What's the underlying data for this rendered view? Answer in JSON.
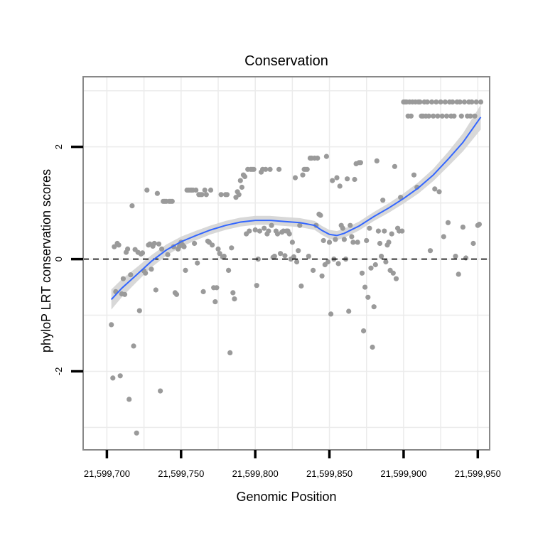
{
  "chart_data": {
    "type": "scatter",
    "title": "Conservation",
    "xlabel": "Genomic Position",
    "ylabel": "phyloP LRT conservation scores",
    "xlim": [
      21599684,
      21599958
    ],
    "ylim": [
      -3.4,
      3.25
    ],
    "x_ticks": [
      {
        "value": 21599700,
        "label": "21,599,700"
      },
      {
        "value": 21599750,
        "label": "21,599,750"
      },
      {
        "value": 21599800,
        "label": "21,599,800"
      },
      {
        "value": 21599850,
        "label": "21,599,850"
      },
      {
        "value": 21599900,
        "label": "21,599,900"
      },
      {
        "value": 21599950,
        "label": "21,599,950"
      }
    ],
    "y_ticks": [
      {
        "value": -2,
        "label": "-2"
      },
      {
        "value": 0,
        "label": "0"
      },
      {
        "value": 2,
        "label": "2"
      }
    ],
    "grid": true,
    "reference_line": {
      "y": 0,
      "style": "dashed"
    },
    "colors": {
      "points": "#9a9a9a",
      "smooth": "#3366ff",
      "ribbon": "#d4d4d4",
      "panel_border": "#888888",
      "grid": "#ebebeb"
    },
    "points": [
      [
        21599703,
        -1.17
      ],
      [
        21599704,
        -2.12
      ],
      [
        21599705,
        0.22
      ],
      [
        21599706,
        -0.58
      ],
      [
        21599707,
        0.28
      ],
      [
        21599708,
        0.25
      ],
      [
        21599709,
        -2.08
      ],
      [
        21599710,
        -0.62
      ],
      [
        21599711,
        -0.35
      ],
      [
        21599712,
        -0.63
      ],
      [
        21599713,
        0.12
      ],
      [
        21599714,
        0.18
      ],
      [
        21599715,
        -2.5
      ],
      [
        21599716,
        -0.28
      ],
      [
        21599717,
        0.95
      ],
      [
        21599718,
        -1.55
      ],
      [
        21599719,
        0.17
      ],
      [
        21599720,
        -3.1
      ],
      [
        21599721,
        0.12
      ],
      [
        21599722,
        -0.92
      ],
      [
        21599723,
        0.09
      ],
      [
        21599724,
        0.11
      ],
      [
        21599725,
        -0.21
      ],
      [
        21599726,
        -0.25
      ],
      [
        21599727,
        1.23
      ],
      [
        21599728,
        0.25
      ],
      [
        21599729,
        0.27
      ],
      [
        21599730,
        -0.18
      ],
      [
        21599731,
        0.23
      ],
      [
        21599732,
        0.28
      ],
      [
        21599733,
        -0.55
      ],
      [
        21599734,
        1.17
      ],
      [
        21599735,
        0.27
      ],
      [
        21599736,
        -2.35
      ],
      [
        21599737,
        0.18
      ],
      [
        21599738,
        1.03
      ],
      [
        21599739,
        1.03
      ],
      [
        21599740,
        1.03
      ],
      [
        21599741,
        0.08
      ],
      [
        21599742,
        1.03
      ],
      [
        21599743,
        1.03
      ],
      [
        21599744,
        1.03
      ],
      [
        21599745,
        0.22
      ],
      [
        21599746,
        -0.6
      ],
      [
        21599747,
        -0.63
      ],
      [
        21599748,
        0.18
      ],
      [
        21599749,
        0.23
      ],
      [
        21599750,
        0.3
      ],
      [
        21599751,
        0.25
      ],
      [
        21599752,
        0.22
      ],
      [
        21599753,
        -0.2
      ],
      [
        21599754,
        1.23
      ],
      [
        21599755,
        1.23
      ],
      [
        21599756,
        1.23
      ],
      [
        21599757,
        1.23
      ],
      [
        21599758,
        1.23
      ],
      [
        21599759,
        0.28
      ],
      [
        21599760,
        1.23
      ],
      [
        21599761,
        -0.07
      ],
      [
        21599762,
        1.15
      ],
      [
        21599763,
        1.15
      ],
      [
        21599764,
        1.15
      ],
      [
        21599765,
        -0.58
      ],
      [
        21599766,
        1.23
      ],
      [
        21599767,
        1.15
      ],
      [
        21599768,
        0.32
      ],
      [
        21599769,
        0.3
      ],
      [
        21599770,
        1.23
      ],
      [
        21599771,
        0.25
      ],
      [
        21599772,
        -0.51
      ],
      [
        21599773,
        -0.76
      ],
      [
        21599774,
        -0.51
      ],
      [
        21599775,
        0.18
      ],
      [
        21599776,
        0.1
      ],
      [
        21599777,
        1.15
      ],
      [
        21599778,
        0.04
      ],
      [
        21599779,
        0.05
      ],
      [
        21599780,
        1.15
      ],
      [
        21599781,
        1.15
      ],
      [
        21599782,
        -0.2
      ],
      [
        21599783,
        -1.67
      ],
      [
        21599784,
        0.2
      ],
      [
        21599785,
        -0.6
      ],
      [
        21599786,
        -0.71
      ],
      [
        21599787,
        1.1
      ],
      [
        21599788,
        1.2
      ],
      [
        21599789,
        1.15
      ],
      [
        21599790,
        1.4
      ],
      [
        21599791,
        1.28
      ],
      [
        21599792,
        1.5
      ],
      [
        21599793,
        1.47
      ],
      [
        21599794,
        0.45
      ],
      [
        21599795,
        1.6
      ],
      [
        21599796,
        0.5
      ],
      [
        21599797,
        1.6
      ],
      [
        21599798,
        1.6
      ],
      [
        21599799,
        1.6
      ],
      [
        21599800,
        0.52
      ],
      [
        21599801,
        -0.47
      ],
      [
        21599802,
        0.0
      ],
      [
        21599803,
        0.5
      ],
      [
        21599804,
        1.55
      ],
      [
        21599805,
        1.6
      ],
      [
        21599806,
        0.55
      ],
      [
        21599807,
        1.6
      ],
      [
        21599808,
        0.45
      ],
      [
        21599809,
        0.5
      ],
      [
        21599810,
        1.6
      ],
      [
        21599811,
        0.6
      ],
      [
        21599812,
        0.03
      ],
      [
        21599813,
        0.05
      ],
      [
        21599814,
        0.5
      ],
      [
        21599815,
        0.45
      ],
      [
        21599816,
        1.6
      ],
      [
        21599817,
        0.1
      ],
      [
        21599818,
        0.48
      ],
      [
        21599819,
        0.5
      ],
      [
        21599820,
        0.06
      ],
      [
        21599821,
        0.5
      ],
      [
        21599822,
        0.5
      ],
      [
        21599823,
        0.45
      ],
      [
        21599824,
        0.0
      ],
      [
        21599825,
        0.3
      ],
      [
        21599826,
        0.04
      ],
      [
        21599827,
        1.45
      ],
      [
        21599828,
        -0.05
      ],
      [
        21599829,
        0.15
      ],
      [
        21599830,
        0.6
      ],
      [
        21599831,
        -0.48
      ],
      [
        21599832,
        1.5
      ],
      [
        21599833,
        1.6
      ],
      [
        21599834,
        1.6
      ],
      [
        21599835,
        1.6
      ],
      [
        21599836,
        0.05
      ],
      [
        21599837,
        1.8
      ],
      [
        21599838,
        1.8
      ],
      [
        21599839,
        -0.2
      ],
      [
        21599840,
        1.8
      ],
      [
        21599841,
        0.6
      ],
      [
        21599842,
        1.8
      ],
      [
        21599843,
        0.8
      ],
      [
        21599844,
        0.78
      ],
      [
        21599845,
        -0.3
      ],
      [
        21599846,
        0.33
      ],
      [
        21599847,
        -0.1
      ],
      [
        21599848,
        1.83
      ],
      [
        21599849,
        -0.05
      ],
      [
        21599850,
        0.3
      ],
      [
        21599851,
        -0.98
      ],
      [
        21599852,
        1.4
      ],
      [
        21599853,
        0.0
      ],
      [
        21599854,
        0.35
      ],
      [
        21599855,
        1.45
      ],
      [
        21599856,
        -0.08
      ],
      [
        21599857,
        1.3
      ],
      [
        21599858,
        0.6
      ],
      [
        21599859,
        0.55
      ],
      [
        21599860,
        0.35
      ],
      [
        21599861,
        0.0
      ],
      [
        21599862,
        1.43
      ],
      [
        21599863,
        -0.93
      ],
      [
        21599864,
        0.6
      ],
      [
        21599865,
        0.4
      ],
      [
        21599866,
        0.3
      ],
      [
        21599867,
        1.42
      ],
      [
        21599868,
        1.7
      ],
      [
        21599869,
        0.3
      ],
      [
        21599870,
        1.72
      ],
      [
        21599871,
        1.72
      ],
      [
        21599872,
        -0.25
      ],
      [
        21599873,
        -1.28
      ],
      [
        21599874,
        -0.5
      ],
      [
        21599875,
        0.33
      ],
      [
        21599876,
        -0.68
      ],
      [
        21599877,
        0.55
      ],
      [
        21599878,
        -0.16
      ],
      [
        21599879,
        -1.57
      ],
      [
        21599880,
        -0.85
      ],
      [
        21599881,
        -0.1
      ],
      [
        21599882,
        1.75
      ],
      [
        21599883,
        0.5
      ],
      [
        21599884,
        0.28
      ],
      [
        21599885,
        0.05
      ],
      [
        21599886,
        1.05
      ],
      [
        21599887,
        0.5
      ],
      [
        21599888,
        -0.05
      ],
      [
        21599889,
        0.25
      ],
      [
        21599890,
        0.3
      ],
      [
        21599891,
        -0.2
      ],
      [
        21599892,
        0.45
      ],
      [
        21599893,
        -0.25
      ],
      [
        21599894,
        1.65
      ],
      [
        21599895,
        -0.35
      ],
      [
        21599896,
        0.55
      ],
      [
        21599897,
        0.5
      ],
      [
        21599898,
        1.1
      ],
      [
        21599899,
        0.5
      ],
      [
        21599900,
        2.8
      ],
      [
        21599901,
        2.8
      ],
      [
        21599902,
        2.8
      ],
      [
        21599903,
        2.55
      ],
      [
        21599904,
        2.8
      ],
      [
        21599905,
        2.55
      ],
      [
        21599906,
        2.8
      ],
      [
        21599907,
        1.5
      ],
      [
        21599908,
        2.8
      ],
      [
        21599909,
        1.28
      ],
      [
        21599910,
        2.8
      ],
      [
        21599911,
        2.8
      ],
      [
        21599912,
        2.55
      ],
      [
        21599913,
        2.55
      ],
      [
        21599914,
        2.8
      ],
      [
        21599915,
        2.55
      ],
      [
        21599916,
        2.8
      ],
      [
        21599917,
        2.55
      ],
      [
        21599918,
        0.15
      ],
      [
        21599919,
        2.8
      ],
      [
        21599920,
        2.55
      ],
      [
        21599921,
        1.25
      ],
      [
        21599922,
        2.8
      ],
      [
        21599923,
        2.55
      ],
      [
        21599924,
        1.2
      ],
      [
        21599925,
        2.8
      ],
      [
        21599926,
        2.55
      ],
      [
        21599927,
        0.4
      ],
      [
        21599928,
        2.8
      ],
      [
        21599929,
        2.55
      ],
      [
        21599930,
        0.65
      ],
      [
        21599931,
        2.8
      ],
      [
        21599932,
        2.55
      ],
      [
        21599933,
        2.8
      ],
      [
        21599934,
        2.55
      ],
      [
        21599935,
        0.05
      ],
      [
        21599936,
        2.8
      ],
      [
        21599937,
        -0.27
      ],
      [
        21599938,
        2.8
      ],
      [
        21599939,
        2.55
      ],
      [
        21599940,
        0.57
      ],
      [
        21599941,
        2.8
      ],
      [
        21599942,
        0.02
      ],
      [
        21599943,
        2.55
      ],
      [
        21599944,
        2.8
      ],
      [
        21599945,
        2.55
      ],
      [
        21599946,
        2.8
      ],
      [
        21599947,
        0.28
      ],
      [
        21599948,
        2.55
      ],
      [
        21599949,
        2.8
      ],
      [
        21599950,
        0.6
      ],
      [
        21599951,
        0.62
      ],
      [
        21599952,
        2.8
      ]
    ],
    "smooth": {
      "x": [
        21599703,
        21599710,
        21599720,
        21599730,
        21599740,
        21599750,
        21599760,
        21599770,
        21599780,
        21599790,
        21599800,
        21599810,
        21599820,
        21599830,
        21599840,
        21599845,
        21599850,
        21599855,
        21599860,
        21599870,
        21599880,
        21599890,
        21599900,
        21599910,
        21599920,
        21599930,
        21599940,
        21599952
      ],
      "y": [
        -0.72,
        -0.52,
        -0.28,
        -0.04,
        0.16,
        0.31,
        0.42,
        0.52,
        0.6,
        0.66,
        0.69,
        0.69,
        0.67,
        0.65,
        0.6,
        0.51,
        0.44,
        0.42,
        0.46,
        0.59,
        0.76,
        0.91,
        1.08,
        1.27,
        1.5,
        1.78,
        2.08,
        2.53
      ],
      "se": [
        0.18,
        0.16,
        0.13,
        0.11,
        0.1,
        0.09,
        0.085,
        0.08,
        0.08,
        0.08,
        0.08,
        0.08,
        0.08,
        0.08,
        0.08,
        0.08,
        0.08,
        0.08,
        0.08,
        0.08,
        0.08,
        0.085,
        0.09,
        0.1,
        0.11,
        0.13,
        0.16,
        0.22
      ]
    }
  }
}
